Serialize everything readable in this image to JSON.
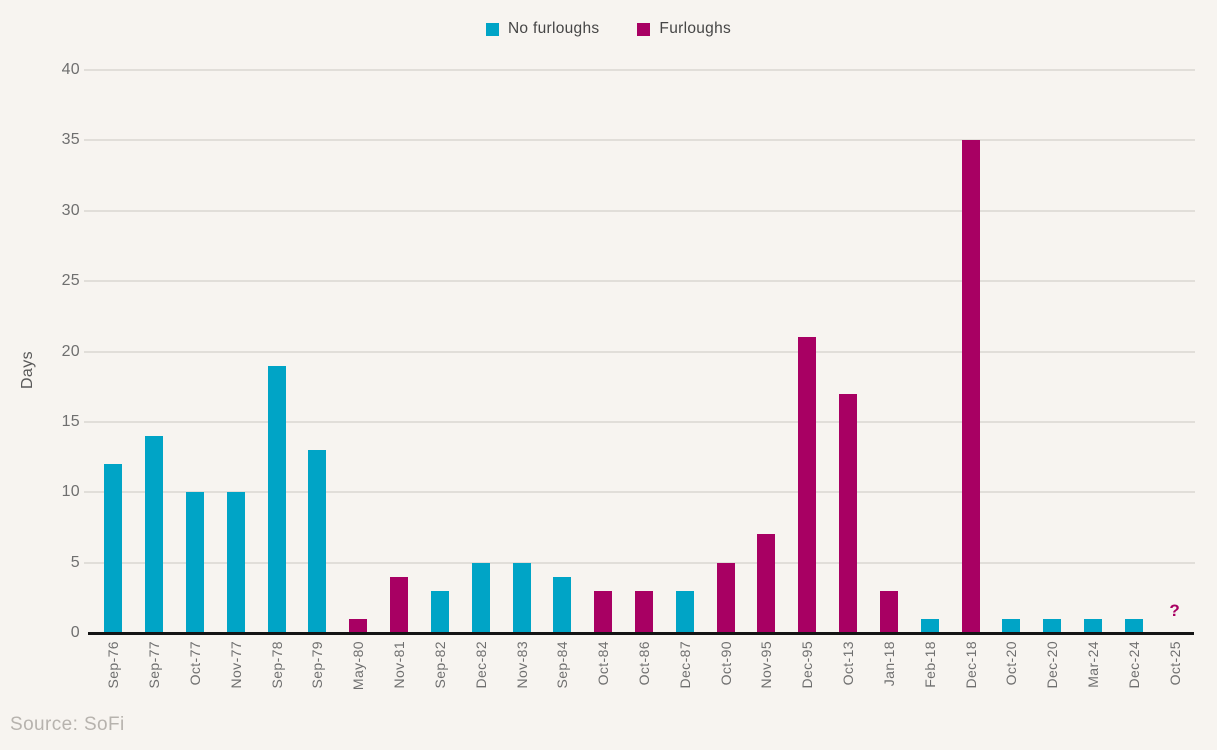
{
  "y_axis": {
    "label": "Days",
    "ticks": [
      0,
      5,
      10,
      15,
      20,
      25,
      30,
      35,
      40
    ],
    "max": 40
  },
  "source": "Source: SoFi",
  "colors": {
    "background": "#f7f4f0",
    "gridline": "#e1ded9",
    "axis": "#141414",
    "tick_text": "#6f6f6f",
    "no_furloughs": "#00a4c6",
    "furloughs": "#a80063"
  },
  "chart_data": {
    "type": "bar",
    "title": "",
    "xlabel": "",
    "ylabel": "Days",
    "ylim": [
      0,
      40
    ],
    "ytick_step": 5,
    "grid": true,
    "legend_position": "top-center",
    "categories": [
      "Sep-76",
      "Sep-77",
      "Oct-77",
      "Nov-77",
      "Sep-78",
      "Sep-79",
      "May-80",
      "Nov-81",
      "Sep-82",
      "Dec-82",
      "Nov-83",
      "Sep-84",
      "Oct-84",
      "Oct-86",
      "Dec-87",
      "Oct-90",
      "Nov-95",
      "Dec-95",
      "Oct-13",
      "Jan-18",
      "Feb-18",
      "Dec-18",
      "Oct-20",
      "Dec-20",
      "Mar-24",
      "Dec-24",
      "Oct-25"
    ],
    "series": [
      {
        "name": "No furloughs",
        "color": "#00a4c6",
        "values": [
          12,
          14,
          10,
          10,
          19,
          13,
          null,
          null,
          3,
          5,
          5,
          4,
          null,
          null,
          3,
          null,
          null,
          null,
          null,
          null,
          1,
          null,
          1,
          1,
          1,
          1,
          null
        ]
      },
      {
        "name": "Furloughs",
        "color": "#a80063",
        "values": [
          null,
          null,
          null,
          null,
          null,
          null,
          1,
          4,
          null,
          null,
          null,
          null,
          3,
          3,
          null,
          5,
          7,
          21,
          17,
          3,
          null,
          35,
          null,
          null,
          null,
          null,
          null
        ]
      }
    ],
    "annotations": [
      {
        "category": "Oct-25",
        "text": "?",
        "color": "#a80063"
      }
    ]
  }
}
